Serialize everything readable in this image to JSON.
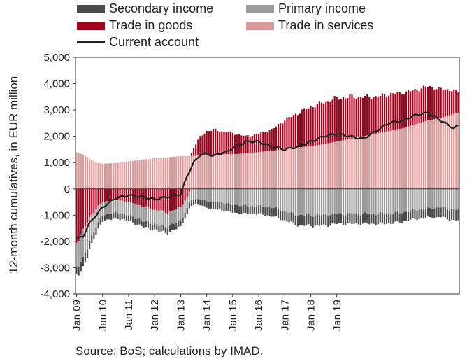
{
  "legend": {
    "secondary_income": "Secondary income",
    "primary_income": "Primary income",
    "trade_goods": "Trade in goods",
    "trade_services": "Trade in services",
    "current_account": "Current account"
  },
  "ylabel": "12-month cumulatives, in EUR million",
  "source": "Source: BoS; calculations by IMAD.",
  "colors": {
    "secondary_income": "#4a4a4a",
    "primary_income": "#9b9b9b",
    "trade_goods": "#a3001b",
    "trade_services": "#dc9a9a",
    "current_account": "#222222"
  },
  "chart_data": {
    "type": "bar",
    "stacked": true,
    "frequency": "monthly",
    "start": "Jan 09",
    "ylim": [
      -4000,
      5000
    ],
    "yticks": [
      "5,000",
      "4,000",
      "3,000",
      "2,000",
      "1,000",
      "0",
      "-1,000",
      "-2,000",
      "-3,000",
      "-4,000"
    ],
    "xticks": [
      "Jan 09",
      "Jan 10",
      "Jan 11",
      "Jan 12",
      "Jan 13",
      "Jan 14",
      "Jan 15",
      "Jan 16",
      "Jan 17",
      "Jan 18",
      "Jan 19"
    ],
    "xlabel": "",
    "grid": false,
    "legend_position": "top",
    "anchors": {
      "x": [
        0,
        3,
        6,
        9,
        12,
        18,
        24,
        30,
        36,
        42,
        48,
        51,
        54,
        57,
        60,
        63,
        66,
        69,
        72,
        78,
        84,
        90,
        96,
        102,
        108,
        114,
        120,
        126,
        132,
        138,
        144,
        150,
        156,
        162,
        168,
        174,
        176
      ],
      "trade_in_goods": [
        -2000,
        -1600,
        -1100,
        -750,
        -500,
        -400,
        -500,
        -650,
        -800,
        -900,
        -700,
        -300,
        300,
        700,
        900,
        950,
        900,
        850,
        800,
        650,
        700,
        800,
        1100,
        1300,
        1500,
        1600,
        1650,
        1600,
        1500,
        1400,
        1400,
        1350,
        1300,
        1300,
        1100,
        900,
        800
      ],
      "trade_in_services": [
        1400,
        1300,
        1150,
        1000,
        960,
        980,
        1050,
        1100,
        1180,
        1200,
        1250,
        1250,
        1250,
        1280,
        1300,
        1300,
        1300,
        1320,
        1320,
        1350,
        1400,
        1450,
        1520,
        1580,
        1620,
        1700,
        1800,
        1900,
        2000,
        2100,
        2200,
        2300,
        2450,
        2600,
        2700,
        2850,
        2900
      ],
      "primary_income": [
        -950,
        -1100,
        -900,
        -700,
        -500,
        -500,
        -500,
        -550,
        -550,
        -550,
        -500,
        -450,
        -400,
        -400,
        -450,
        -500,
        -500,
        -550,
        -600,
        -650,
        -650,
        -700,
        -850,
        -1000,
        -1000,
        -1000,
        -950,
        -950,
        -950,
        -950,
        -950,
        -900,
        -800,
        -750,
        -700,
        -800,
        -800
      ],
      "secondary_income": [
        -300,
        -350,
        -300,
        -250,
        -220,
        -220,
        -220,
        -220,
        -220,
        -230,
        -230,
        -220,
        -200,
        -220,
        -250,
        -280,
        -290,
        -300,
        -300,
        -300,
        -300,
        -330,
        -350,
        -380,
        -400,
        -400,
        -380,
        -380,
        -380,
        -380,
        -370,
        -350,
        -350,
        -350,
        -370,
        -400,
        -400
      ],
      "current_account": [
        -1900,
        -1800,
        -1300,
        -1000,
        -700,
        -350,
        -250,
        -300,
        -400,
        -300,
        -200,
        500,
        1000,
        1300,
        1350,
        1250,
        1350,
        1400,
        1550,
        1800,
        1800,
        1600,
        1500,
        1600,
        1800,
        2000,
        2100,
        2000,
        1900,
        2200,
        2500,
        2600,
        2800,
        2900,
        2600,
        2300,
        2400
      ]
    }
  }
}
